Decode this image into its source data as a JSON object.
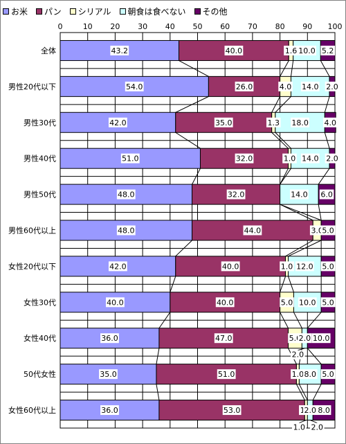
{
  "chart_data": {
    "type": "bar",
    "stacked": true,
    "orientation": "horizontal",
    "percent_axis": true,
    "xlim": [
      0,
      100
    ],
    "xticks": [
      "0",
      "10",
      "20",
      "30",
      "40",
      "50",
      "60",
      "70",
      "80",
      "90",
      "100"
    ],
    "categories": [
      "全体",
      "男性20代以下",
      "男性30代",
      "男性40代",
      "男性50代",
      "男性60代以上",
      "女性20代以下",
      "女性30代",
      "女性40代",
      "50代女性",
      "女性60代以上"
    ],
    "series": [
      {
        "name": "お米",
        "color": "#9999ff",
        "values": [
          43.2,
          54.0,
          42.0,
          51.0,
          48.0,
          48.0,
          42.0,
          40.0,
          36.0,
          35.0,
          36.0
        ]
      },
      {
        "name": "パン",
        "color": "#993366",
        "values": [
          40.0,
          26.0,
          35.0,
          32.0,
          32.0,
          44.0,
          40.0,
          40.0,
          47.0,
          51.0,
          53.0
        ]
      },
      {
        "name": "シリアル",
        "color": "#ffffcc",
        "values": [
          1.6,
          4.0,
          1.3,
          1.0,
          0.0,
          3.0,
          1.0,
          5.0,
          5.0,
          1.0,
          1.0
        ]
      },
      {
        "name": "朝食は食べない",
        "color": "#ccffff",
        "values": [
          10.0,
          14.0,
          18.0,
          14.0,
          14.0,
          0.0,
          12.0,
          10.0,
          2.0,
          8.0,
          2.0
        ]
      },
      {
        "name": "その他",
        "color": "#660066",
        "values": [
          5.2,
          2.0,
          4.0,
          2.0,
          6.0,
          5.0,
          5.0,
          5.0,
          10.0,
          5.0,
          8.0
        ]
      }
    ],
    "data_labels": [
      [
        "43.2",
        "40.0",
        "1.6",
        "10.0",
        "5.2"
      ],
      [
        "54.0",
        "26.0",
        "4.0",
        "14.0",
        "2.0"
      ],
      [
        "42.0",
        "35.0",
        "1.3",
        "18.0",
        "4.0"
      ],
      [
        "51.0",
        "32.0",
        "1.0",
        "14.0",
        "2.0"
      ],
      [
        "48.0",
        "32.0",
        "",
        "14.0",
        "6.0"
      ],
      [
        "48.0",
        "44.0",
        "3.0",
        "",
        "5.0"
      ],
      [
        "42.0",
        "40.0",
        "1.0",
        "12.0",
        "5.0"
      ],
      [
        "40.0",
        "40.0",
        "5.0",
        "10.0",
        "5.0"
      ],
      [
        "36.0",
        "47.0",
        "5.0",
        "2.0",
        "10.0"
      ],
      [
        "35.0",
        "51.0",
        "1.0",
        "8.0",
        "5.0"
      ],
      [
        "36.0",
        "53.0",
        "1.0",
        "2.0",
        "8.0"
      ]
    ],
    "outside_labels": [
      {
        "category_index": 8,
        "series_index": 3,
        "text": "2.0",
        "position": "below"
      },
      {
        "category_index": 10,
        "series_index": 2,
        "text": "1.0",
        "position": "below"
      },
      {
        "category_index": 10,
        "series_index": 3,
        "text": "2.0",
        "position": "below"
      }
    ],
    "series_lines": true,
    "grid": "vertical",
    "legend_position": "top"
  }
}
